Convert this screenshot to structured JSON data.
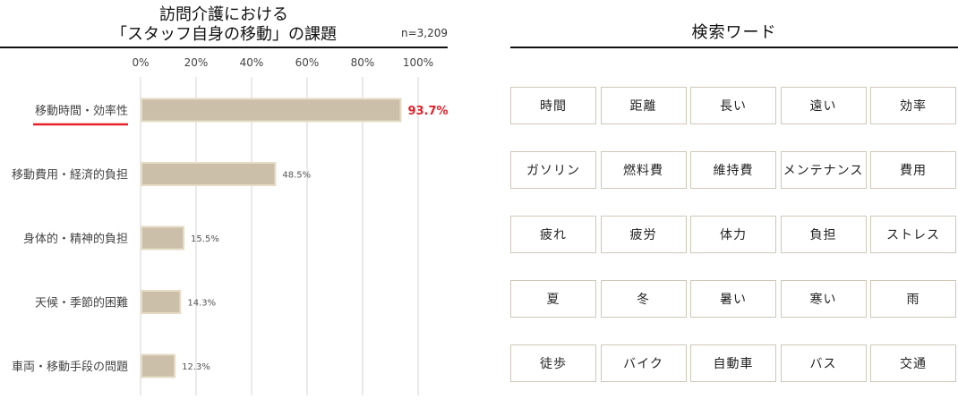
{
  "left_panel": {
    "title_line1": "訪問介護における",
    "title_line2": "「スタッフ自身の移動」の課題",
    "n_label": "n=3,209"
  },
  "chart_data": {
    "type": "bar",
    "orientation": "horizontal",
    "categories": [
      "移動時間・効率性",
      "移動費用・経済的負担",
      "身体的・精神的負担",
      "天候・季節的困難",
      "車両・移動手段の問題"
    ],
    "values": [
      93.7,
      48.5,
      15.5,
      14.3,
      12.3
    ],
    "value_labels": [
      "93.7%",
      "48.5%",
      "15.5%",
      "14.3%",
      "12.3%"
    ],
    "xlim": [
      0,
      100
    ],
    "ticks": [
      0,
      20,
      40,
      60,
      80,
      100
    ],
    "tick_labels": [
      "0%",
      "20%",
      "40%",
      "60%",
      "80%",
      "100%"
    ],
    "tick_position": "top",
    "grid": true,
    "bar_color": "#cbbfa9",
    "bar_border_color": "#e6dcc6",
    "highlight_index": 0,
    "highlight_color": "#e8202a"
  },
  "right_panel": {
    "title": "検索ワード",
    "words": [
      [
        "時間",
        "距離",
        "長い",
        "遠い",
        "効率"
      ],
      [
        "ガソリン",
        "燃料費",
        "維持費",
        "メンテナンス",
        "費用"
      ],
      [
        "疲れ",
        "疲労",
        "体力",
        "負担",
        "ストレス"
      ],
      [
        "夏",
        "冬",
        "暑い",
        "寒い",
        "雨"
      ],
      [
        "徒歩",
        "バイク",
        "自動車",
        "バス",
        "交通"
      ]
    ]
  }
}
